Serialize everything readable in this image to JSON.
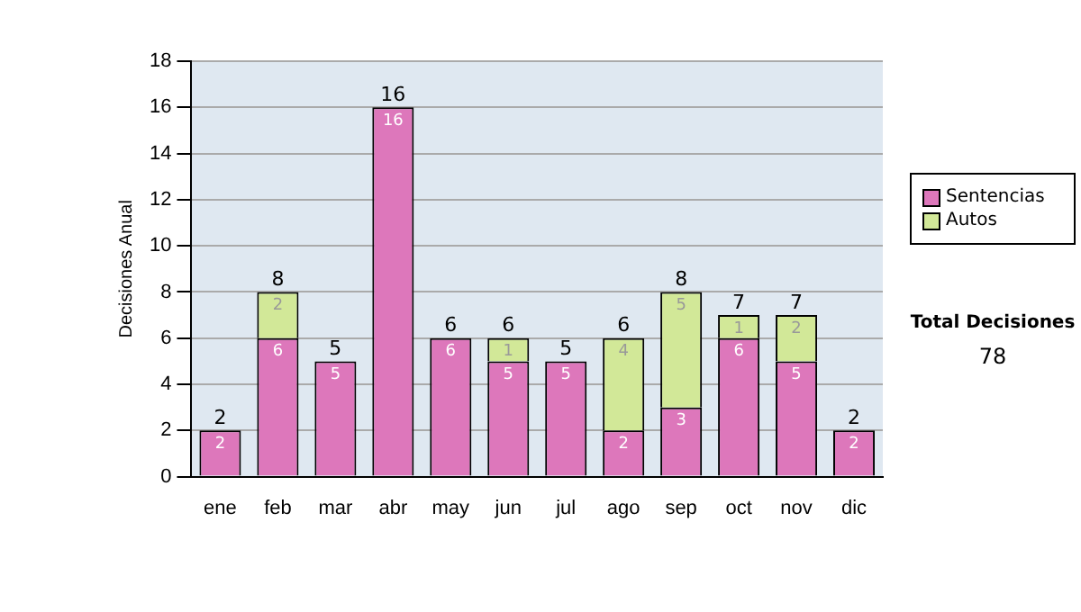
{
  "chart_data": {
    "type": "bar",
    "stacked": true,
    "ylabel": "Decisiones Anual",
    "categories": [
      "ene",
      "feb",
      "mar",
      "abr",
      "may",
      "jun",
      "jul",
      "ago",
      "sep",
      "oct",
      "nov",
      "dic"
    ],
    "series": [
      {
        "name": "Sentencias",
        "color": "#dd77bb",
        "values": [
          2,
          6,
          5,
          16,
          6,
          5,
          5,
          2,
          3,
          6,
          5,
          2
        ]
      },
      {
        "name": "Autos",
        "color": "#d2e898",
        "values": [
          null,
          2,
          null,
          null,
          null,
          1,
          null,
          4,
          5,
          1,
          2,
          null
        ]
      }
    ],
    "data_labels": true,
    "totals": [
      "2",
      "8",
      "5",
      "16",
      "6",
      "6",
      "5",
      "6",
      "8",
      "7",
      "7",
      "2"
    ],
    "ylim": [
      0,
      18
    ],
    "yticks": [
      0,
      2,
      4,
      6,
      8,
      10,
      12,
      14,
      16,
      18
    ],
    "grid": "y",
    "legend": "right",
    "annotations": [
      "Total Decisiones",
      "78"
    ]
  }
}
